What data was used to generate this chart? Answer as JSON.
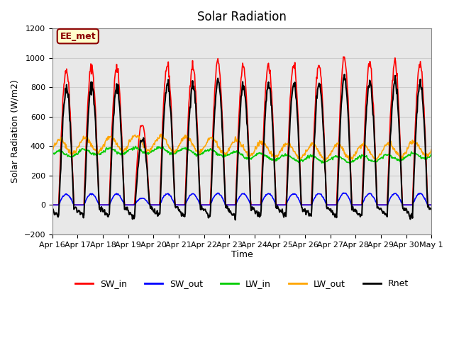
{
  "title": "Solar Radiation",
  "ylabel": "Solar Radiation (W/m2)",
  "xlabel": "Time",
  "ylim": [
    -200,
    1200
  ],
  "yticks": [
    -200,
    0,
    200,
    400,
    600,
    800,
    1000,
    1200
  ],
  "annotation_text": "EE_met",
  "annotation_color": "#8B0000",
  "annotation_bg": "#FFFFCC",
  "SW_in_color": "#FF0000",
  "SW_out_color": "#0000FF",
  "LW_in_color": "#00CC00",
  "LW_out_color": "#FFA500",
  "Rnet_color": "#000000",
  "grid_color": "#CCCCCC",
  "bg_color": "#E8E8E8",
  "plot_bg": "#FFFFFF",
  "x_tick_labels": [
    "Apr 16",
    "Apr 17",
    "Apr 18",
    "Apr 19",
    "Apr 20",
    "Apr 21",
    "Apr 22",
    "Apr 23",
    "Apr 24",
    "Apr 25",
    "Apr 26",
    "Apr 27",
    "Apr 28",
    "Apr 29",
    "Apr 30",
    "May 1"
  ],
  "legend_entries": [
    "SW_in",
    "SW_out",
    "LW_in",
    "LW_out",
    "Rnet"
  ],
  "sw_in_peaks": [
    920,
    940,
    930,
    550,
    950,
    950,
    970,
    940,
    950,
    960,
    960,
    1000,
    960,
    965,
    960
  ]
}
